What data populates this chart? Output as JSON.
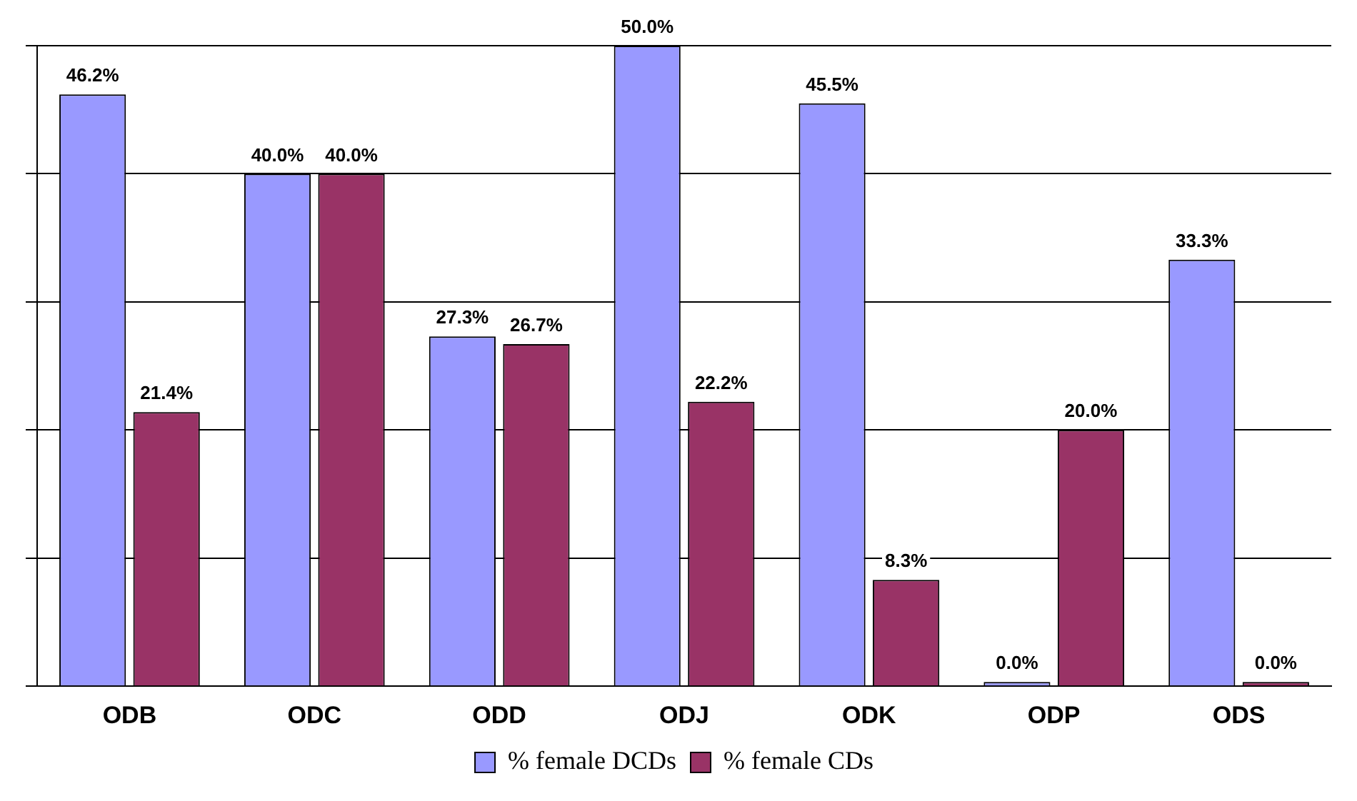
{
  "chart_data": {
    "type": "bar",
    "categories": [
      "ODB",
      "ODC",
      "ODD",
      "ODJ",
      "ODK",
      "ODP",
      "ODS"
    ],
    "series": [
      {
        "name": "% female DCDs",
        "color": "#9999ff",
        "values": [
          46.2,
          40.0,
          27.3,
          50.0,
          45.5,
          0.0,
          33.3
        ],
        "value_labels": [
          "46.2%",
          "40.0%",
          "27.3%",
          "50.0%",
          "45.5%",
          "0.0%",
          "33.3%"
        ]
      },
      {
        "name": "% female CDs",
        "color": "#993366",
        "values": [
          21.4,
          40.0,
          26.7,
          22.2,
          8.3,
          20.0,
          0.0
        ],
        "value_labels": [
          "21.4%",
          "40.0%",
          "26.7%",
          "22.2%",
          "8.3%",
          "20.0%",
          "0.0%"
        ]
      }
    ],
    "ylim": [
      0,
      50
    ],
    "yticks": [
      {
        "value": 0,
        "label": null
      },
      {
        "value": 10,
        "label": null
      },
      {
        "value": 20,
        "label": null
      },
      {
        "value": 30,
        "label": null
      },
      {
        "value": 40,
        "label": null
      },
      {
        "value": 50,
        "label": null
      }
    ],
    "grid": "y",
    "legend": "bottom"
  }
}
